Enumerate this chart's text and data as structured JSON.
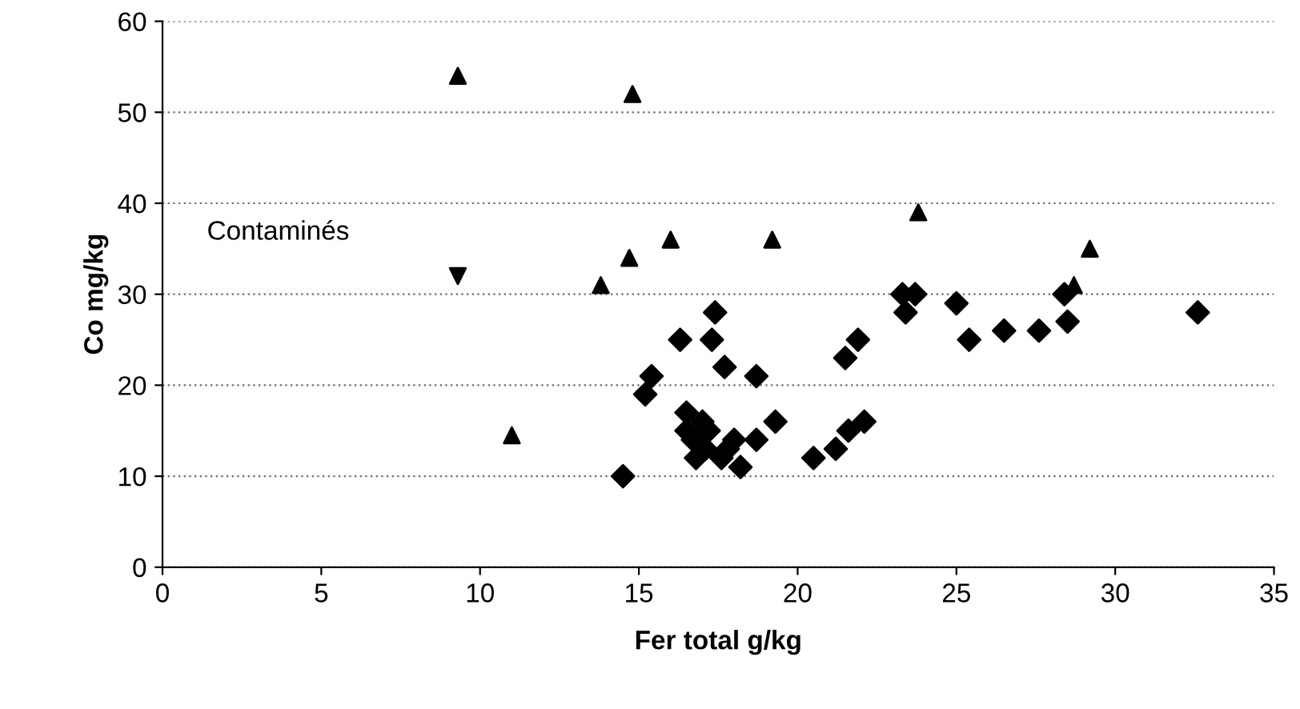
{
  "chart_data": {
    "type": "scatter",
    "xlabel": "Fer total g/kg",
    "ylabel": "Co mg/kg",
    "xlim": [
      0,
      35
    ],
    "ylim": [
      0,
      60
    ],
    "xticks": [
      0,
      5,
      10,
      15,
      20,
      25,
      30,
      35
    ],
    "yticks": [
      0,
      10,
      20,
      30,
      40,
      50,
      60
    ],
    "grid": "y",
    "annotations": [
      "Contaminés"
    ],
    "series": [
      {
        "color": "#000000",
        "marker": "diamond",
        "x": [
          14.5,
          15.2,
          15.4,
          16.3,
          16.5,
          16.5,
          16.7,
          16.8,
          17.0,
          17.2,
          17.1,
          17.3,
          17.4,
          17.7,
          17.6,
          17.8,
          18.0,
          18.2,
          18.7,
          18.7,
          19.3,
          20.5,
          21.2,
          21.5,
          21.6,
          21.9,
          22.1,
          23.3,
          23.4,
          23.7,
          25.0,
          25.4,
          26.5,
          27.6,
          28.4,
          28.5,
          32.6
        ],
        "values": [
          10,
          19,
          21,
          25,
          17,
          15,
          14,
          12,
          16,
          15,
          13,
          25,
          28,
          22,
          12,
          13,
          14,
          11,
          21,
          14,
          16,
          12,
          13,
          23,
          15,
          25,
          16,
          30,
          28,
          30,
          29,
          25,
          26,
          26,
          30,
          27,
          28
        ]
      },
      {
        "color": "#000000",
        "marker": "triangle",
        "x": [
          9.3,
          14.8,
          16.0,
          14.7,
          13.8,
          19.2,
          23.8,
          29.2,
          28.7,
          11.0
        ],
        "values": [
          54,
          52,
          36,
          34,
          31,
          36,
          39,
          35,
          31,
          14.5
        ]
      },
      {
        "color": "#000000",
        "marker": "triangle_down",
        "x": [
          9.3
        ],
        "values": [
          32
        ]
      }
    ]
  }
}
